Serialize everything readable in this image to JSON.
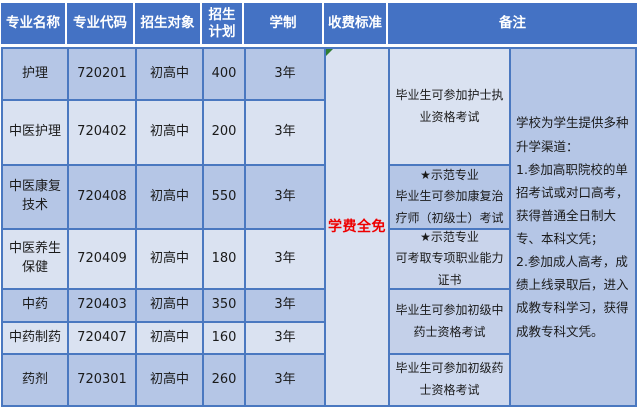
{
  "table": {
    "headers": [
      "专业名称",
      "专业代码",
      "招生对象",
      "招生计划",
      "学制",
      "收费标准",
      "备注"
    ],
    "rows": [
      {
        "name": "护理",
        "code": "720201",
        "target": "初高中",
        "plan": "400",
        "duration": "3年"
      },
      {
        "name": "中医护理",
        "code": "720402",
        "target": "初高中",
        "plan": "200",
        "duration": "3年"
      },
      {
        "name": "中医康复技术",
        "code": "720408",
        "target": "初高中",
        "plan": "550",
        "duration": "3年"
      },
      {
        "name": "中医养生保健",
        "code": "720409",
        "target": "初高中",
        "plan": "180",
        "duration": "3年"
      },
      {
        "name": "中药",
        "code": "720403",
        "target": "初高中",
        "plan": "350",
        "duration": "3年"
      },
      {
        "name": "中药制药",
        "code": "720407",
        "target": "初高中",
        "plan": "160",
        "duration": "3年"
      },
      {
        "name": "药剂",
        "code": "720301",
        "target": "初高中",
        "plan": "260",
        "duration": "3年"
      }
    ],
    "fee_note": "学费全免",
    "remarks": [
      "毕业生可参加护士执业资格考试",
      "★示范专业\n毕业生可参加康复治疗师（初级士）考试",
      "★示范专业\n可考取专项职业能力证书",
      "毕业生可参加初级中药士资格考试",
      "毕业生可参加初级药士资格考试"
    ],
    "promotion_note": "学校为学生提供多种升学渠道：\n1.参加高职院校的单招考试或对口高考，获得普通全日制大专、本科文凭；\n2.参加成人高考，成绩上线录取后，进入成教专科学习，获得成教专科文凭。"
  },
  "colors": {
    "header_bg": "#4472c4",
    "row_dark": "#b5c6e6",
    "row_light": "#dae2f1",
    "border": "#4a78c0",
    "fee_text": "#ee0000",
    "error_indicator": "#2e7d32"
  }
}
